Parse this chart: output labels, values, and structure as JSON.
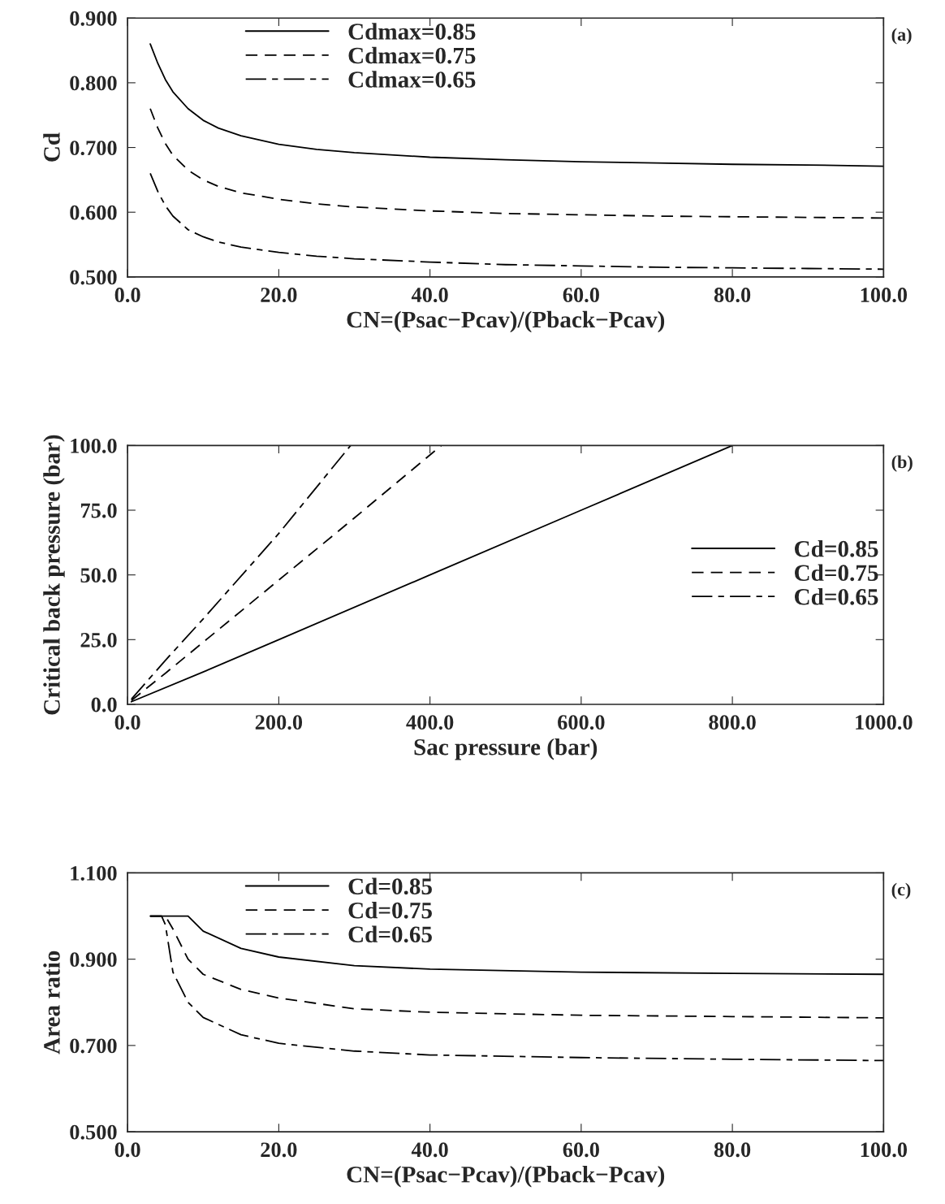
{
  "chart_data": [
    {
      "type": "line",
      "xlabel": "CN=(Psac−Pcav)/(Pback−Pcav)",
      "ylabel": "Cd",
      "annotations": [
        "(a)"
      ],
      "legend": "top left",
      "grid": false,
      "xlim": [
        0,
        100
      ],
      "ylim": [
        0.5,
        0.9
      ],
      "xticks": [
        {
          "value": 0,
          "label": "0.0"
        },
        {
          "value": 20,
          "label": "20.0"
        },
        {
          "value": 40,
          "label": "40.0"
        },
        {
          "value": 60,
          "label": "60.0"
        },
        {
          "value": 80,
          "label": "80.0"
        },
        {
          "value": 100,
          "label": "100.0"
        }
      ],
      "yticks": [
        {
          "value": 0.5,
          "label": "0.500"
        },
        {
          "value": 0.6,
          "label": "0.600"
        },
        {
          "value": 0.7,
          "label": "0.700"
        },
        {
          "value": 0.8,
          "label": "0.800"
        },
        {
          "value": 0.9,
          "label": "0.900"
        }
      ],
      "series": [
        {
          "name": "Cdmax=0.85",
          "color": "#000000",
          "line_style": "solid",
          "x": [
            3,
            4,
            5,
            6,
            8,
            10,
            12,
            15,
            20,
            25,
            30,
            40,
            50,
            60,
            70,
            80,
            90,
            100
          ],
          "values": [
            0.86,
            0.83,
            0.805,
            0.786,
            0.76,
            0.742,
            0.73,
            0.718,
            0.705,
            0.697,
            0.692,
            0.685,
            0.681,
            0.678,
            0.676,
            0.674,
            0.673,
            0.671
          ]
        },
        {
          "name": "Cdmax=0.75",
          "color": "#000000",
          "line_style": "dashed",
          "x": [
            3,
            4,
            5,
            6,
            8,
            10,
            12,
            15,
            20,
            25,
            30,
            40,
            50,
            60,
            70,
            80,
            90,
            100
          ],
          "values": [
            0.76,
            0.73,
            0.706,
            0.688,
            0.665,
            0.65,
            0.64,
            0.63,
            0.62,
            0.613,
            0.608,
            0.602,
            0.598,
            0.596,
            0.594,
            0.593,
            0.592,
            0.591
          ]
        },
        {
          "name": "Cdmax=0.65",
          "color": "#000000",
          "line_style": "dashdot",
          "x": [
            3,
            4,
            5,
            6,
            8,
            10,
            12,
            15,
            20,
            25,
            30,
            40,
            50,
            60,
            70,
            80,
            90,
            100
          ],
          "values": [
            0.66,
            0.632,
            0.61,
            0.594,
            0.573,
            0.562,
            0.554,
            0.546,
            0.538,
            0.532,
            0.528,
            0.523,
            0.519,
            0.517,
            0.515,
            0.514,
            0.513,
            0.512
          ]
        }
      ]
    },
    {
      "type": "line",
      "xlabel": "Sac pressure (bar)",
      "ylabel": "Critical back pressure (bar)",
      "annotations": [
        "(b)"
      ],
      "legend": "right",
      "grid": false,
      "xlim": [
        0,
        1000
      ],
      "ylim": [
        0,
        100
      ],
      "xticks": [
        {
          "value": 0,
          "label": "0.0"
        },
        {
          "value": 200,
          "label": "200.0"
        },
        {
          "value": 400,
          "label": "400.0"
        },
        {
          "value": 600,
          "label": "600.0"
        },
        {
          "value": 800,
          "label": "800.0"
        },
        {
          "value": 1000,
          "label": "1000.0"
        }
      ],
      "yticks": [
        {
          "value": 0,
          "label": "0.0"
        },
        {
          "value": 25,
          "label": "25.0"
        },
        {
          "value": 50,
          "label": "50.0"
        },
        {
          "value": 75,
          "label": "75.0"
        },
        {
          "value": 100,
          "label": "100.0"
        }
      ],
      "series": [
        {
          "name": "Cd=0.85",
          "color": "#000000",
          "line_style": "solid",
          "x": [
            5,
            100,
            200,
            400,
            600,
            800
          ],
          "values": [
            1,
            12.5,
            25,
            50,
            75,
            100
          ]
        },
        {
          "name": "Cd=0.75",
          "color": "#000000",
          "line_style": "dashed",
          "x": [
            5,
            50,
            100,
            200,
            300,
            415
          ],
          "values": [
            1.5,
            12,
            24,
            48,
            72,
            100
          ]
        },
        {
          "name": "Cd=0.65",
          "color": "#000000",
          "line_style": "dashdot",
          "x": [
            5,
            50,
            100,
            200,
            295
          ],
          "values": [
            2,
            17,
            33,
            66,
            100
          ]
        }
      ]
    },
    {
      "type": "line",
      "xlabel": "CN=(Psac−Pcav)/(Pback−Pcav)",
      "ylabel": "Area ratio",
      "annotations": [
        "(c)"
      ],
      "legend": "top left",
      "grid": false,
      "xlim": [
        0,
        100
      ],
      "ylim": [
        0.5,
        1.1
      ],
      "xticks": [
        {
          "value": 0,
          "label": "0.0"
        },
        {
          "value": 20,
          "label": "20.0"
        },
        {
          "value": 40,
          "label": "40.0"
        },
        {
          "value": 60,
          "label": "60.0"
        },
        {
          "value": 80,
          "label": "80.0"
        },
        {
          "value": 100,
          "label": "100.0"
        }
      ],
      "yticks": [
        {
          "value": 0.5,
          "label": "0.500"
        },
        {
          "value": 0.7,
          "label": "0.700"
        },
        {
          "value": 0.9,
          "label": "0.900"
        },
        {
          "value": 1.1,
          "label": "1.100"
        }
      ],
      "series": [
        {
          "name": "Cd=0.85",
          "color": "#000000",
          "line_style": "solid",
          "x": [
            3,
            8,
            10,
            15,
            20,
            30,
            40,
            60,
            80,
            100
          ],
          "values": [
            1.0,
            1.0,
            0.965,
            0.925,
            0.905,
            0.885,
            0.877,
            0.87,
            0.867,
            0.865
          ]
        },
        {
          "name": "Cd=0.75",
          "color": "#000000",
          "line_style": "dashed",
          "x": [
            3,
            5,
            6,
            8,
            10,
            15,
            20,
            30,
            40,
            60,
            80,
            100
          ],
          "values": [
            1.0,
            1.0,
            0.97,
            0.9,
            0.865,
            0.83,
            0.81,
            0.785,
            0.777,
            0.77,
            0.767,
            0.764
          ]
        },
        {
          "name": "Cd=0.65",
          "color": "#000000",
          "line_style": "dashdot",
          "x": [
            3,
            4.5,
            5,
            6,
            8,
            10,
            15,
            20,
            30,
            40,
            60,
            80,
            100
          ],
          "values": [
            1.0,
            1.0,
            0.98,
            0.87,
            0.8,
            0.765,
            0.725,
            0.705,
            0.687,
            0.678,
            0.672,
            0.668,
            0.665
          ]
        }
      ]
    }
  ]
}
